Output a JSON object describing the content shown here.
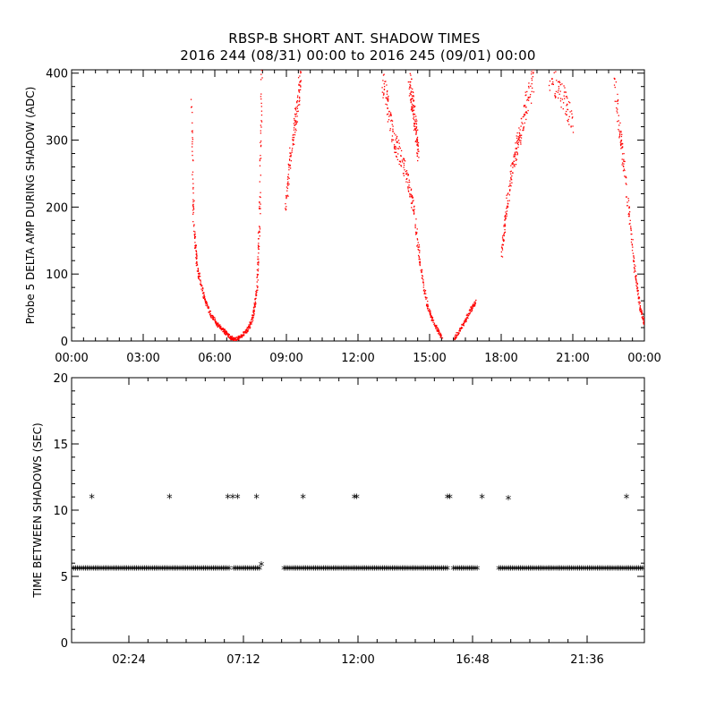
{
  "title_line1": "RBSP-B SHORT ANT. SHADOW TIMES",
  "title_line2": "2016 244 (08/31) 00:00 to 2016 245 (09/01) 00:00",
  "chart_data": [
    {
      "type": "scatter",
      "ylabel": "Probe 5 DELTA AMP DURING SHADOW (ADC)",
      "xlim": [
        0,
        24
      ],
      "ylim": [
        0,
        405
      ],
      "xticks": [
        0,
        3,
        6,
        9,
        12,
        15,
        18,
        21,
        24
      ],
      "xtick_labels": [
        "00:00",
        "03:00",
        "06:00",
        "09:00",
        "12:00",
        "15:00",
        "18:00",
        "21:00",
        "00:00"
      ],
      "yticks": [
        0,
        100,
        200,
        300,
        400
      ],
      "ytick_labels": [
        "0",
        "100",
        "200",
        "300",
        "400"
      ],
      "color": "#ff0000",
      "segments": [
        {
          "t": [
            5.0,
            5.1,
            5.25,
            5.5,
            5.8,
            6.1,
            6.4,
            6.65,
            6.8
          ],
          "y": [
            360,
            170,
            110,
            70,
            40,
            25,
            15,
            6,
            2
          ]
        },
        {
          "t": [
            6.8,
            7.1,
            7.4,
            7.6,
            7.75,
            7.85,
            7.95
          ],
          "y": [
            2,
            8,
            20,
            40,
            80,
            180,
            400
          ]
        },
        {
          "t": [
            8.95,
            9.15,
            9.4,
            9.6
          ],
          "y": [
            200,
            280,
            340,
            400
          ]
        },
        {
          "t": [
            13.0,
            13.3,
            13.6,
            14.0,
            14.3,
            14.6,
            14.9,
            15.2,
            15.5
          ],
          "y": [
            400,
            330,
            290,
            250,
            200,
            110,
            50,
            25,
            5
          ]
        },
        {
          "t": [
            14.1,
            14.25,
            14.4,
            14.5
          ],
          "y": [
            400,
            360,
            320,
            280
          ]
        },
        {
          "t": [
            16.0,
            16.3,
            16.6,
            16.9
          ],
          "y": [
            3,
            20,
            40,
            60
          ]
        },
        {
          "t": [
            18.0,
            18.2,
            18.45,
            18.7,
            19.0,
            19.4
          ],
          "y": [
            130,
            200,
            260,
            300,
            350,
            400
          ]
        },
        {
          "t": [
            20.0,
            20.5,
            21.0
          ],
          "y": [
            400,
            370,
            330
          ]
        },
        {
          "t": [
            22.7,
            23.0,
            23.3,
            23.6,
            23.8,
            24.0
          ],
          "y": [
            400,
            300,
            200,
            100,
            50,
            25
          ]
        }
      ]
    },
    {
      "type": "scatter",
      "ylabel": "TIME BETWEEN SHADOWS (SEC)",
      "xlim": [
        0,
        24
      ],
      "ylim": [
        0,
        20
      ],
      "xticks": [
        2.4,
        7.2,
        12.0,
        16.8,
        21.6
      ],
      "xtick_labels": [
        "02:24",
        "07:12",
        "12:00",
        "16:48",
        "21:36"
      ],
      "yticks": [
        0,
        5,
        10,
        15,
        20
      ],
      "ytick_labels": [
        "0",
        "5",
        "10",
        "15",
        "20"
      ],
      "marker": "*",
      "color": "#000000",
      "baseline_value": 5.5,
      "baseline_ranges": [
        [
          0,
          6.6
        ],
        [
          6.8,
          7.9
        ],
        [
          8.9,
          15.8
        ],
        [
          16.0,
          17.0
        ],
        [
          17.9,
          24.0
        ]
      ],
      "outliers": {
        "x": [
          0.85,
          4.1,
          6.55,
          6.75,
          6.95,
          7.75,
          7.95,
          9.7,
          11.85,
          11.95,
          15.75,
          15.85,
          17.2,
          18.3,
          23.25
        ],
        "y": [
          10.9,
          10.9,
          10.9,
          10.9,
          10.9,
          10.9,
          5.8,
          10.9,
          10.9,
          10.9,
          10.9,
          10.9,
          10.9,
          10.8,
          10.9
        ]
      }
    }
  ]
}
